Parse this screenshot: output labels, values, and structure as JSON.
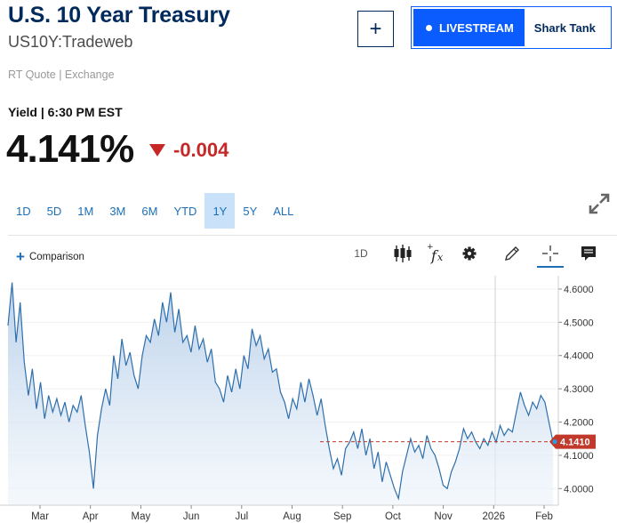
{
  "header": {
    "title": "U.S. 10 Year Treasury",
    "symbol": "US10Y:Tradeweb",
    "quote_source": "RT Quote | Exchange",
    "add_label": "+",
    "livestream_label": "LIVESTREAM",
    "livestream_show": "Shark Tank"
  },
  "quote": {
    "yield_label": "Yield | 6:30 PM EST",
    "price": "4.141%",
    "change": "-0.004",
    "direction": "down",
    "change_color": "#c62828"
  },
  "ranges": {
    "tabs": [
      "1D",
      "5D",
      "1M",
      "3M",
      "6M",
      "YTD",
      "1Y",
      "5Y",
      "ALL"
    ],
    "active": "1Y"
  },
  "toolbar": {
    "comparison_label": "Comparison",
    "interval_label": "1D",
    "icons": [
      "candlestick-icon",
      "function-icon",
      "gear-icon",
      "pencil-icon",
      "crosshair-icon",
      "comment-icon"
    ],
    "active_tool": "crosshair-icon"
  },
  "chart_data": {
    "type": "area",
    "title": "",
    "xlabel": "",
    "ylabel": "",
    "x_ticks": [
      "Mar",
      "Apr",
      "May",
      "Jun",
      "Jul",
      "Aug",
      "Sep",
      "Oct",
      "Nov",
      "2026",
      "Feb"
    ],
    "y_ticks": [
      "4.6000",
      "4.5000",
      "4.4000",
      "4.3000",
      "4.2000",
      "4.1000",
      "4.0000"
    ],
    "ylim": [
      3.95,
      4.64
    ],
    "last_value_label": "4.1410",
    "last_value": 4.141,
    "line_color": "#2e6fad",
    "fill_color": "#c7d9ee",
    "last_value_color": "#c0392b",
    "series": [
      {
        "values": [
          4.49,
          4.62,
          4.44,
          4.56,
          4.38,
          4.28,
          4.36,
          4.24,
          4.32,
          4.21,
          4.28,
          4.23,
          4.27,
          4.22,
          4.26,
          4.2,
          4.25,
          4.23,
          4.28,
          4.19,
          4.11,
          4.0,
          4.16,
          4.24,
          4.3,
          4.25,
          4.4,
          4.33,
          4.45,
          4.37,
          4.41,
          4.34,
          4.3,
          4.4,
          4.46,
          4.44,
          4.51,
          4.46,
          4.56,
          4.5,
          4.59,
          4.47,
          4.54,
          4.44,
          4.46,
          4.41,
          4.49,
          4.42,
          4.45,
          4.38,
          4.42,
          4.32,
          4.3,
          4.26,
          4.34,
          4.29,
          4.36,
          4.3,
          4.4,
          4.36,
          4.48,
          4.43,
          4.46,
          4.39,
          4.42,
          4.35,
          4.36,
          4.29,
          4.26,
          4.21,
          4.27,
          4.24,
          4.32,
          4.26,
          4.33,
          4.28,
          4.22,
          4.27,
          4.19,
          4.12,
          4.06,
          4.09,
          4.04,
          4.12,
          4.14,
          4.17,
          4.12,
          4.18,
          4.1,
          4.15,
          4.06,
          4.11,
          4.02,
          4.08,
          4.04,
          4.0,
          3.97,
          4.05,
          4.1,
          4.15,
          4.11,
          4.13,
          4.09,
          4.16,
          4.12,
          4.1,
          4.06,
          4.01,
          4.0,
          4.05,
          4.08,
          4.12,
          4.18,
          4.15,
          4.17,
          4.14,
          4.12,
          4.15,
          4.13,
          4.17,
          4.14,
          4.19,
          4.16,
          4.18,
          4.17,
          4.23,
          4.29,
          4.25,
          4.22,
          4.26,
          4.24,
          4.28,
          4.26,
          4.2,
          4.141
        ]
      }
    ]
  }
}
